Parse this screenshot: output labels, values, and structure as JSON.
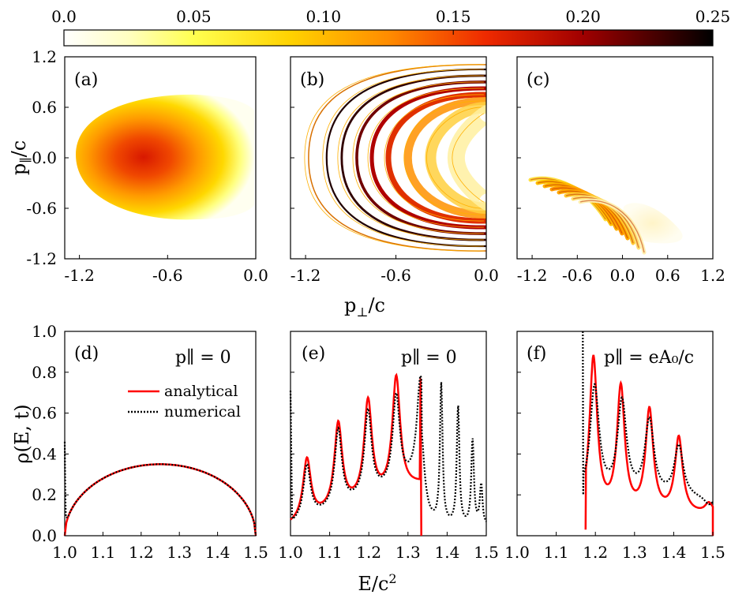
{
  "colorbar": {
    "ticks": [
      "0.0",
      "0.05",
      "0.10",
      "0.15",
      "0.20",
      "0.25"
    ],
    "values": [
      0,
      0.05,
      0.1,
      0.15,
      0.2,
      0.25
    ],
    "range": [
      0,
      0.25
    ]
  },
  "top_row": {
    "ylabel_main": "p",
    "ylabel_sub": "∥",
    "ylabel_tail": "/c",
    "xlabel_main": "p",
    "xlabel_sub": "⊥",
    "xlabel_tail": "/c",
    "y_ticks": [
      "1.2",
      "0.6",
      "0.0",
      "-0.6",
      "-1.2"
    ],
    "y_values": [
      1.2,
      0.6,
      0.0,
      -0.6,
      -1.2
    ],
    "x_ticks_a": [
      "-1.2",
      "-0.6",
      "0.0"
    ],
    "x_ticks_b": [
      "-1.2",
      "-0.6",
      "0.0"
    ],
    "x_ticks_c": [
      "-1.2",
      "-0.6",
      "0.0",
      "0.6",
      "1.2"
    ],
    "panels": [
      "(a)",
      "(b)",
      "(c)"
    ]
  },
  "bottom_row": {
    "ylabel": "ρ(E, t)",
    "xlabel_main": "E/c",
    "xlabel_sup": "2",
    "y_ticks": [
      "1.0",
      "0.8",
      "0.6",
      "0.4",
      "0.2",
      "0.0"
    ],
    "x_ticks_d": [
      "1.0",
      "1.1",
      "1.2",
      "1.3",
      "1.4",
      "1.5"
    ],
    "x_ticks_e": [
      "1.0",
      "1.1",
      "1.2",
      "1.3",
      "1.4",
      "1.5"
    ],
    "x_ticks_f": [
      "1.0",
      "1.1",
      "1.2",
      "1.3",
      "1.4",
      "1.5"
    ],
    "panels": [
      "(d)",
      "(e)",
      "(f)"
    ],
    "annot_d": "p∥ = 0",
    "annot_e": "p∥ = 0",
    "annot_f": "p∥ = eA₀/c",
    "legend": [
      "analytical",
      "numerical"
    ]
  },
  "colors": {
    "analytical": "#ff0000",
    "numerical": "#000000",
    "colormap": [
      "#ffffff",
      "#ffff60",
      "#ffd000",
      "#ff7000",
      "#e00000",
      "#800000",
      "#000000"
    ]
  },
  "chart_data": [
    {
      "type": "heatmap",
      "panel": "(a)",
      "xlabel": "p⊥/c",
      "ylabel": "p∥/c",
      "xlim": [
        -1.3,
        0
      ],
      "ylim": [
        -1.2,
        1.2
      ],
      "description_values": {
        "peak_center": [
          -0.72,
          0.0
        ],
        "peak_value": 0.17
      }
    },
    {
      "type": "heatmap",
      "panel": "(b)",
      "xlabel": "p⊥/c",
      "ylabel": "p∥/c",
      "xlim": [
        -1.3,
        0
      ],
      "ylim": [
        -1.2,
        1.2
      ],
      "fringe_vertices_x": [
        -1.18,
        -1.06,
        -0.96,
        -0.86,
        -0.76,
        -0.65,
        -0.52,
        -0.37,
        -0.2
      ],
      "max_value": 0.25
    },
    {
      "type": "heatmap",
      "panel": "(c)",
      "xlabel": "p⊥/c",
      "ylabel": "p∥/c",
      "xlim": [
        -1.4,
        1.2
      ],
      "ylim": [
        -1.2,
        1.2
      ],
      "stripe_band_x": [
        -1.1,
        -0.2
      ],
      "faint_blob_center": [
        0.45,
        -0.75
      ]
    },
    {
      "type": "line",
      "panel": "(d)",
      "xlabel": "E/c²",
      "ylabel": "ρ(E, t)",
      "xlim": [
        1.0,
        1.5
      ],
      "ylim": [
        0,
        1.0
      ],
      "series": [
        {
          "name": "analytical",
          "x": [
            1.0,
            1.005,
            1.02,
            1.05,
            1.1,
            1.15,
            1.2,
            1.25,
            1.3,
            1.35,
            1.4,
            1.45,
            1.48,
            1.495,
            1.5
          ],
          "y": [
            0.0,
            0.07,
            0.14,
            0.21,
            0.28,
            0.32,
            0.342,
            0.35,
            0.342,
            0.32,
            0.28,
            0.21,
            0.14,
            0.07,
            0.0
          ]
        },
        {
          "name": "numerical",
          "x": [
            1.0,
            1.001,
            1.003,
            1.005,
            1.02,
            1.05,
            1.1,
            1.15,
            1.2,
            1.25,
            1.3,
            1.35,
            1.4,
            1.45,
            1.48,
            1.495,
            1.5
          ],
          "y": [
            0.46,
            0.3,
            0.1,
            0.07,
            0.14,
            0.21,
            0.28,
            0.32,
            0.342,
            0.35,
            0.342,
            0.32,
            0.28,
            0.21,
            0.14,
            0.07,
            0.0
          ]
        }
      ]
    },
    {
      "type": "line",
      "panel": "(e)",
      "xlabel": "E/c²",
      "ylabel": "ρ(E, t)",
      "xlim": [
        1.0,
        1.5
      ],
      "ylim": [
        0,
        1.0
      ],
      "analytical_peaks": {
        "x": [
          1.042,
          1.122,
          1.198,
          1.27,
          1.332
        ],
        "y": [
          0.37,
          0.54,
          0.65,
          0.77,
          0.77
        ]
      },
      "numerical_peaks": {
        "x": [
          1.0,
          1.042,
          1.122,
          1.198,
          1.27,
          1.332,
          1.385,
          1.428,
          1.465,
          1.487
        ],
        "y": [
          0.71,
          0.34,
          0.51,
          0.6,
          0.67,
          0.76,
          0.72,
          0.62,
          0.46,
          0.24
        ]
      }
    },
    {
      "type": "line",
      "panel": "(f)",
      "xlabel": "E/c²",
      "ylabel": "ρ(E, t)",
      "xlim": [
        1.0,
        1.5
      ],
      "ylim": [
        0,
        1.0
      ],
      "analytical_peaks": {
        "x": [
          1.195,
          1.265,
          1.338,
          1.413,
          1.49
        ],
        "y": [
          0.86,
          0.71,
          0.6,
          0.47,
          0.15
        ]
      },
      "numerical_peaks": {
        "x": [
          1.168,
          1.198,
          1.268,
          1.338,
          1.413,
          1.49
        ],
        "y": [
          1.0,
          0.72,
          0.64,
          0.55,
          0.43,
          0.14
        ]
      }
    }
  ]
}
